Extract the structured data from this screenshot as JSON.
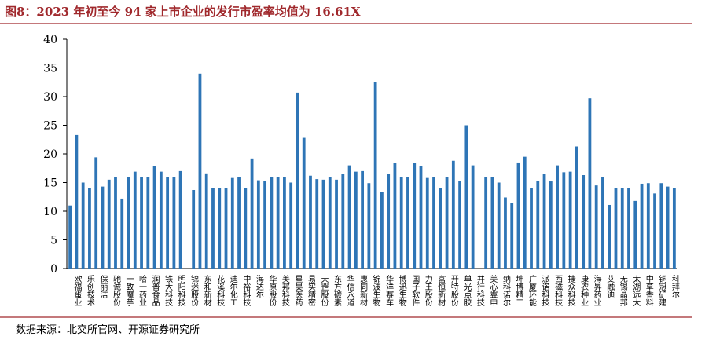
{
  "chart_data": {
    "type": "bar",
    "title": "图8：2023 年初至今 94 家上市企业的发行市盈率均值为 16.61X",
    "source": "数据来源：北交所官网、开源证券研究所",
    "color": "#2e75b6",
    "ylim": [
      0,
      40
    ],
    "yticks": [
      0,
      5,
      10,
      15,
      20,
      25,
      30,
      35,
      40
    ],
    "categories": [
      null,
      "欧福蛋业",
      null,
      "乐创技术",
      null,
      "保丽洁",
      null,
      "驰诚股份",
      null,
      "一致魔芋",
      null,
      "哈一药业",
      null,
      "润普食品",
      null,
      "铁大科技",
      null,
      "明阳科技",
      null,
      "锦迷股份",
      null,
      "东和新材",
      null,
      "花溪科技",
      null,
      "迪尔化工",
      null,
      "中裕科技",
      null,
      "海达尔",
      null,
      "华原股份",
      null,
      "美邦科技",
      null,
      "星昊医药",
      null,
      "易实精密",
      null,
      "天罡股份",
      null,
      "东方碳素",
      null,
      "华信永道",
      null,
      "惠同新材",
      null,
      "锦波生物",
      null,
      "华洋赛车",
      null,
      "博迅生物",
      null,
      "国子软件",
      null,
      "力王股份",
      null,
      "富恒新材",
      null,
      "开特股份",
      null,
      "单光点胶",
      null,
      "并行科技",
      null,
      "美心翼申",
      null,
      "纳科诺尔",
      null,
      "坤博精工",
      null,
      "广厦环能",
      null,
      "派诺科技",
      null,
      "西磁科技",
      null,
      "捷众科技",
      null,
      "康农种业",
      null,
      "海昇药业",
      null,
      "艾融迪",
      null,
      "无锡晶邦",
      null,
      "太湖远大",
      null,
      "中草香料",
      null,
      "铜冠矿建",
      null,
      "科拜尔"
    ],
    "values": [
      11,
      23.3,
      15,
      14,
      19.4,
      14.3,
      15.5,
      16,
      12.2,
      16,
      16.9,
      16,
      16,
      17.9,
      16.9,
      16,
      16,
      17,
      null,
      13.7,
      34,
      16.6,
      14,
      14,
      14.1,
      15.8,
      15.9,
      14,
      19.2,
      15.4,
      15.3,
      16,
      16,
      16,
      15,
      30.7,
      22.8,
      16.2,
      15.6,
      15.5,
      16,
      15.5,
      16.5,
      18,
      16.9,
      17,
      14.9,
      32.5,
      13.3,
      16.5,
      18.4,
      16,
      15.9,
      18.4,
      17.9,
      15.8,
      16,
      14,
      16,
      18.8,
      15.3,
      25,
      18,
      null,
      16,
      16,
      15,
      12.4,
      11.4,
      18.5,
      19.5,
      14,
      15.3,
      16.5,
      15.2,
      18,
      16.8,
      16.9,
      21.3,
      16.3,
      29.7,
      14.5,
      16,
      11.1,
      14,
      14,
      14,
      11.8,
      14.8,
      14.9,
      13.1,
      14.9,
      14.3,
      14
    ]
  }
}
